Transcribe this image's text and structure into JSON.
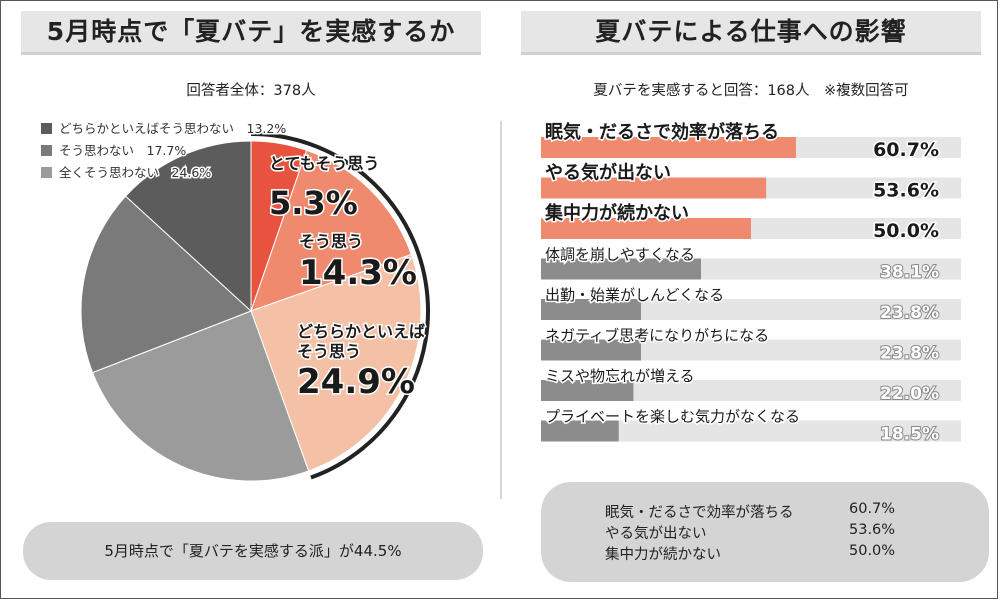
{
  "left": {
    "title": "5月時点で「夏バテ」を実感するか",
    "subtitle": "回答者全体：378人",
    "bottom_note": "5月時点で「夏バテを実感する派」が44.5%"
  },
  "right": {
    "title": "夏バテによる仕事への影響",
    "subtitle": "夏バテを実感すると回答：168人　※複数回答可",
    "summary": [
      {
        "label": "眠気・だるさで効率が落ちる",
        "value": "60.7%"
      },
      {
        "label": "やる気が出ない",
        "value": "53.6%"
      },
      {
        "label": "集中力が続かない",
        "value": "50.0%"
      }
    ]
  },
  "colors": {
    "pie_very": "#e8533f",
    "pie_yes": "#ef8a6e",
    "pie_somewhat": "#f5c1a6",
    "pie_notmuch": "#5c5c5c",
    "pie_no": "#8a8a8a",
    "pie_notatall": "#9b9b9b",
    "bar_highlight": "#ef8a6e",
    "bar_gray": "#8c8c8c",
    "bar_track": "#e5e5e5"
  },
  "chart_data": [
    {
      "type": "pie",
      "slices": [
        {
          "label_lines": [
            "とてもそう思う"
          ],
          "value": 5.3,
          "display": "5.3%",
          "color": "#e8533f",
          "labeled": true,
          "legend": ""
        },
        {
          "label_lines": [
            "そう思う"
          ],
          "value": 14.3,
          "display": "14.3%",
          "color": "#ef8a6e",
          "labeled": true,
          "legend": ""
        },
        {
          "label_lines": [
            "どちらかといえば",
            "そう思う"
          ],
          "value": 24.9,
          "display": "24.9%",
          "color": "#f5c1a6",
          "labeled": true,
          "legend": ""
        },
        {
          "label_lines": [],
          "value": 24.6,
          "display": "24.6%",
          "color": "#9b9b9b",
          "labeled": false,
          "legend": "全くそう思わない　24.6%"
        },
        {
          "label_lines": [],
          "value": 17.7,
          "display": "17.7%",
          "color": "#7a7a7a",
          "labeled": false,
          "legend": "そう思わない　17.7%"
        },
        {
          "label_lines": [],
          "value": 13.2,
          "display": "13.2%",
          "color": "#5c5c5c",
          "labeled": false,
          "legend": "どちらかといえばそう思わない　13.2%"
        }
      ],
      "legend_order": [
        5,
        4,
        3
      ]
    },
    {
      "type": "bar",
      "orientation": "horizontal",
      "categories": [
        "眠気・だるさで効率が落ちる",
        "やる気が出ない",
        "集中力が続かない",
        "体調を崩しやすくなる",
        "出勤・始業がしんどくなる",
        "ネガティブ思考になりがちになる",
        "ミスや物忘れが増える",
        "プライベートを楽しむ気力がなくなる"
      ],
      "values": [
        60.7,
        53.6,
        50.0,
        38.1,
        23.8,
        23.8,
        22.0,
        18.5
      ],
      "value_labels": [
        "60.7%",
        "53.6%",
        "50.0%",
        "38.1%",
        "23.8%",
        "23.8%",
        "22.0%",
        "18.5%"
      ],
      "highlight_top": 3,
      "xlim": [
        0,
        100
      ]
    }
  ]
}
